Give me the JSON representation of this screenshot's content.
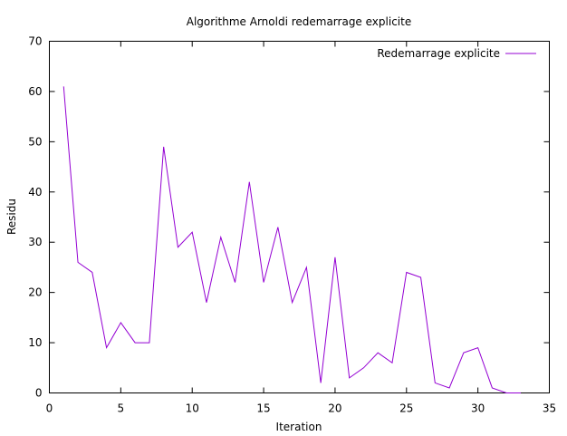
{
  "chart_data": {
    "type": "line",
    "title": "Algorithme Arnoldi redemarrage explicite",
    "xlabel": "Iteration",
    "ylabel": "Residu",
    "xlim": [
      0,
      35
    ],
    "ylim": [
      0,
      70
    ],
    "xticks": [
      "0",
      "5",
      "10",
      "15",
      "20",
      "25",
      "30",
      "35"
    ],
    "yticks": [
      "0",
      "10",
      "20",
      "30",
      "40",
      "50",
      "60",
      "70"
    ],
    "grid": false,
    "legend_position": "top-right",
    "series": [
      {
        "name": "Redemarrage explicite",
        "color": "#9400d3",
        "x": [
          1,
          2,
          3,
          4,
          5,
          6,
          7,
          8,
          9,
          10,
          11,
          12,
          13,
          14,
          15,
          16,
          17,
          18,
          19,
          20,
          21,
          22,
          23,
          24,
          25,
          26,
          27,
          28,
          29,
          30,
          31,
          32,
          33
        ],
        "y": [
          61,
          26,
          24,
          9,
          14,
          10,
          10,
          49,
          29,
          32,
          18,
          31,
          22,
          42,
          22,
          33,
          18,
          25,
          2,
          27,
          3,
          5,
          8,
          6,
          24,
          23,
          2,
          1,
          8,
          9,
          1,
          0,
          0
        ]
      }
    ]
  }
}
